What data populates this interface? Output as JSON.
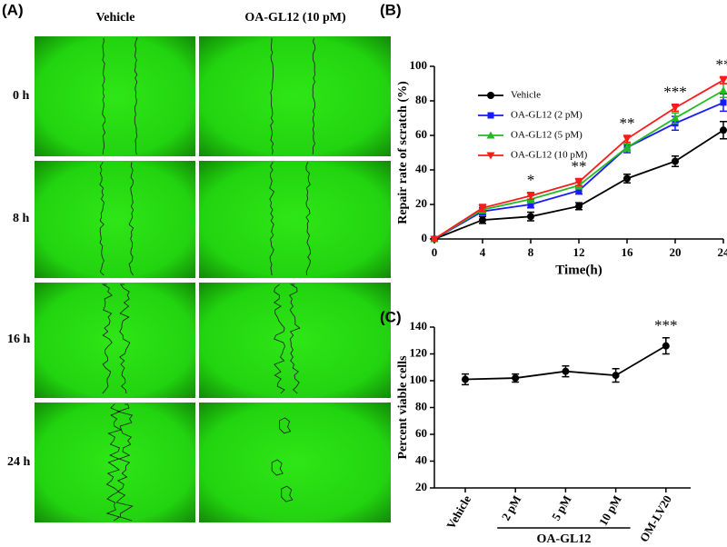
{
  "panel_a": {
    "label": "(A)",
    "columns": [
      "Vehicle",
      "OA-GL12 (10 pM)"
    ],
    "rows": [
      "0 h",
      "8 h",
      "16 h",
      "24 h"
    ]
  },
  "chart_data": [
    {
      "type": "line",
      "title": "(B)",
      "xlabel": "Time(h)",
      "ylabel": "Repair rate of scratch (%)",
      "x": [
        0,
        4,
        8,
        12,
        16,
        20,
        24
      ],
      "xlim": [
        0,
        24
      ],
      "xticks": [
        0,
        4,
        8,
        12,
        16,
        20,
        24
      ],
      "ylim": [
        0,
        100
      ],
      "yticks": [
        0,
        20,
        40,
        60,
        80,
        100
      ],
      "legend": "upper left",
      "annotations": [
        null,
        null,
        "*",
        "**",
        "**",
        "***",
        "**"
      ],
      "series": [
        {
          "name": "Vehicle",
          "color": "#000000",
          "marker": "circle",
          "values": [
            0,
            11,
            13,
            19,
            35,
            45,
            63
          ],
          "errors": [
            1,
            2,
            2.5,
            2,
            2.5,
            3,
            5
          ]
        },
        {
          "name": "OA-GL12 (2 pM)",
          "color": "#1a1aff",
          "marker": "square",
          "values": [
            0,
            16,
            20,
            28,
            53,
            67,
            79
          ],
          "errors": [
            1,
            2,
            2,
            2,
            3,
            4,
            5
          ]
        },
        {
          "name": "OA-GL12 (5 pM)",
          "color": "#22bb22",
          "marker": "triangle",
          "values": [
            0,
            17,
            23,
            31,
            53,
            70,
            86
          ],
          "errors": [
            1,
            2,
            2,
            2,
            2,
            3,
            4
          ]
        },
        {
          "name": "OA-GL12 (10 pM)",
          "color": "#ff1a1a",
          "marker": "triangle-down",
          "values": [
            0,
            18,
            25,
            33,
            58,
            76,
            92
          ],
          "errors": [
            1,
            2,
            2,
            2,
            2,
            2,
            2
          ]
        }
      ]
    },
    {
      "type": "line",
      "title": "(C)",
      "ylabel": "Percent viable cells",
      "group_label": "OA-GL12",
      "categories": [
        "Vehicle",
        "2 pM",
        "5 pM",
        "10 pM",
        "OM-LV20"
      ],
      "values": [
        101,
        102,
        107,
        104,
        126
      ],
      "errors": [
        4,
        3,
        4,
        5,
        6
      ],
      "color": "#000000",
      "annotations": [
        null,
        null,
        null,
        null,
        "***"
      ],
      "ylim": [
        20,
        140
      ],
      "yticks": [
        20,
        40,
        60,
        80,
        100,
        120,
        140
      ]
    }
  ]
}
